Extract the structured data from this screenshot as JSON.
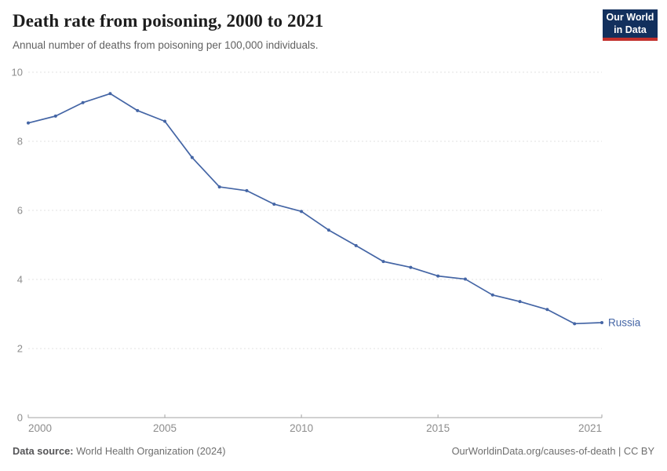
{
  "header": {
    "title": "Death rate from poisoning, 2000 to 2021",
    "subtitle": "Annual number of deaths from poisoning per 100,000 individuals.",
    "logo": {
      "line1": "Our World",
      "line2": "in Data",
      "bg_color": "#12305d",
      "bar_color": "#c2302c"
    }
  },
  "chart_data": {
    "type": "line",
    "title": "Death rate from poisoning, 2000 to 2021",
    "subtitle": "Annual number of deaths from poisoning per 100,000 individuals.",
    "xlabel": "",
    "ylabel": "",
    "xlim": [
      2000,
      2021
    ],
    "ylim": [
      0,
      10
    ],
    "x_ticks": [
      2000,
      2005,
      2010,
      2015,
      2021
    ],
    "y_ticks": [
      0,
      2,
      4,
      6,
      8,
      10
    ],
    "grid": "horizontal-dashed",
    "legend_position": "end-of-line-label",
    "colors": {
      "grid": "#e2e2e2",
      "axis": "#a3a3a3",
      "tick_label": "#8d8d8d"
    },
    "series": [
      {
        "name": "Russia",
        "color": "#4465a5",
        "x": [
          2000,
          2001,
          2002,
          2003,
          2004,
          2005,
          2006,
          2007,
          2008,
          2009,
          2010,
          2011,
          2012,
          2013,
          2014,
          2015,
          2016,
          2017,
          2018,
          2019,
          2020,
          2021
        ],
        "values": [
          8.53,
          8.73,
          9.12,
          9.38,
          8.89,
          8.58,
          7.53,
          6.68,
          6.57,
          6.18,
          5.97,
          5.43,
          4.98,
          4.52,
          4.35,
          4.1,
          4.01,
          3.55,
          3.36,
          3.13,
          2.72,
          2.75
        ]
      }
    ]
  },
  "footer": {
    "source_label": "Data source:",
    "source_text": " World Health Organization (2024)",
    "credit": "OurWorldinData.org/causes-of-death | CC BY"
  }
}
